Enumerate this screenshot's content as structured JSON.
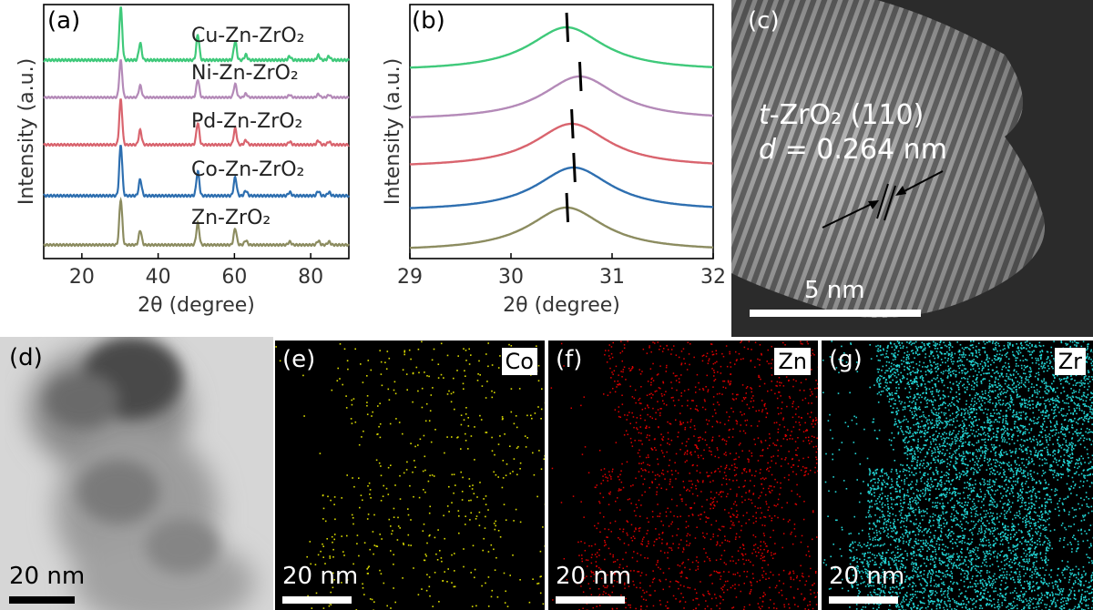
{
  "panels": {
    "a": {
      "tag": "(a)"
    },
    "b": {
      "tag": "(b)"
    },
    "c": {
      "tag": "(c)",
      "plane_phase": "t",
      "plane_label": "-ZrO₂ (110)",
      "d_symbol": "d",
      "d_label": " = 0.264 nm",
      "scale": "5 nm"
    },
    "d": {
      "tag": "(d)",
      "scale": "20 nm"
    },
    "e": {
      "tag": "(e)",
      "element": "Co",
      "scale": "20 nm",
      "dot_color": "#d9d900"
    },
    "f": {
      "tag": "(f)",
      "element": "Zn",
      "scale": "20 nm",
      "dot_color": "#e00000"
    },
    "g": {
      "tag": "(g)",
      "element": "Zr",
      "scale": "20 nm",
      "dot_color": "#22d3d3"
    }
  },
  "chart_data": [
    {
      "type": "line",
      "panel": "a",
      "xlabel": "2θ (degree)",
      "ylabel": "Intensity (a.u.)",
      "xlim": [
        10,
        90
      ],
      "xticks": [
        20,
        40,
        60,
        80
      ],
      "peaks_x": [
        30.2,
        35.3,
        50.4,
        60.2,
        63.0,
        74.5,
        82.0,
        84.8
      ],
      "peaks_rel": [
        1.0,
        0.32,
        0.48,
        0.36,
        0.1,
        0.07,
        0.09,
        0.07
      ],
      "series": [
        {
          "name": "Cu-Zn-ZrO₂",
          "color": "#3fc97a",
          "peak_height": 1.0
        },
        {
          "name": "Ni-Zn-ZrO₂",
          "color": "#b48ab8",
          "peak_height": 0.85
        },
        {
          "name": "Pd-Zn-ZrO₂",
          "color": "#d9646e",
          "peak_height": 1.0
        },
        {
          "name": "Co-Zn-ZrO₂",
          "color": "#2e6fb0",
          "peak_height": 1.0
        },
        {
          "name": "Zn-ZrO₂",
          "color": "#8c8c60",
          "peak_height": 1.0
        }
      ]
    },
    {
      "type": "line",
      "panel": "b",
      "xlabel": "2θ (degree)",
      "ylabel": "Intensity (a.u.)",
      "xlim": [
        29,
        32
      ],
      "xticks": [
        29,
        30,
        31,
        32
      ],
      "series": [
        {
          "color": "#3fc97a",
          "peak_center": 30.55,
          "marker_x": 30.55
        },
        {
          "color": "#b48ab8",
          "peak_center": 30.68,
          "marker_x": 30.68
        },
        {
          "color": "#d9646e",
          "peak_center": 30.6,
          "marker_x": 30.6
        },
        {
          "color": "#2e6fb0",
          "peak_center": 30.62,
          "marker_x": 30.62
        },
        {
          "color": "#8c8c60",
          "peak_center": 30.55,
          "marker_x": 30.55
        }
      ]
    }
  ]
}
